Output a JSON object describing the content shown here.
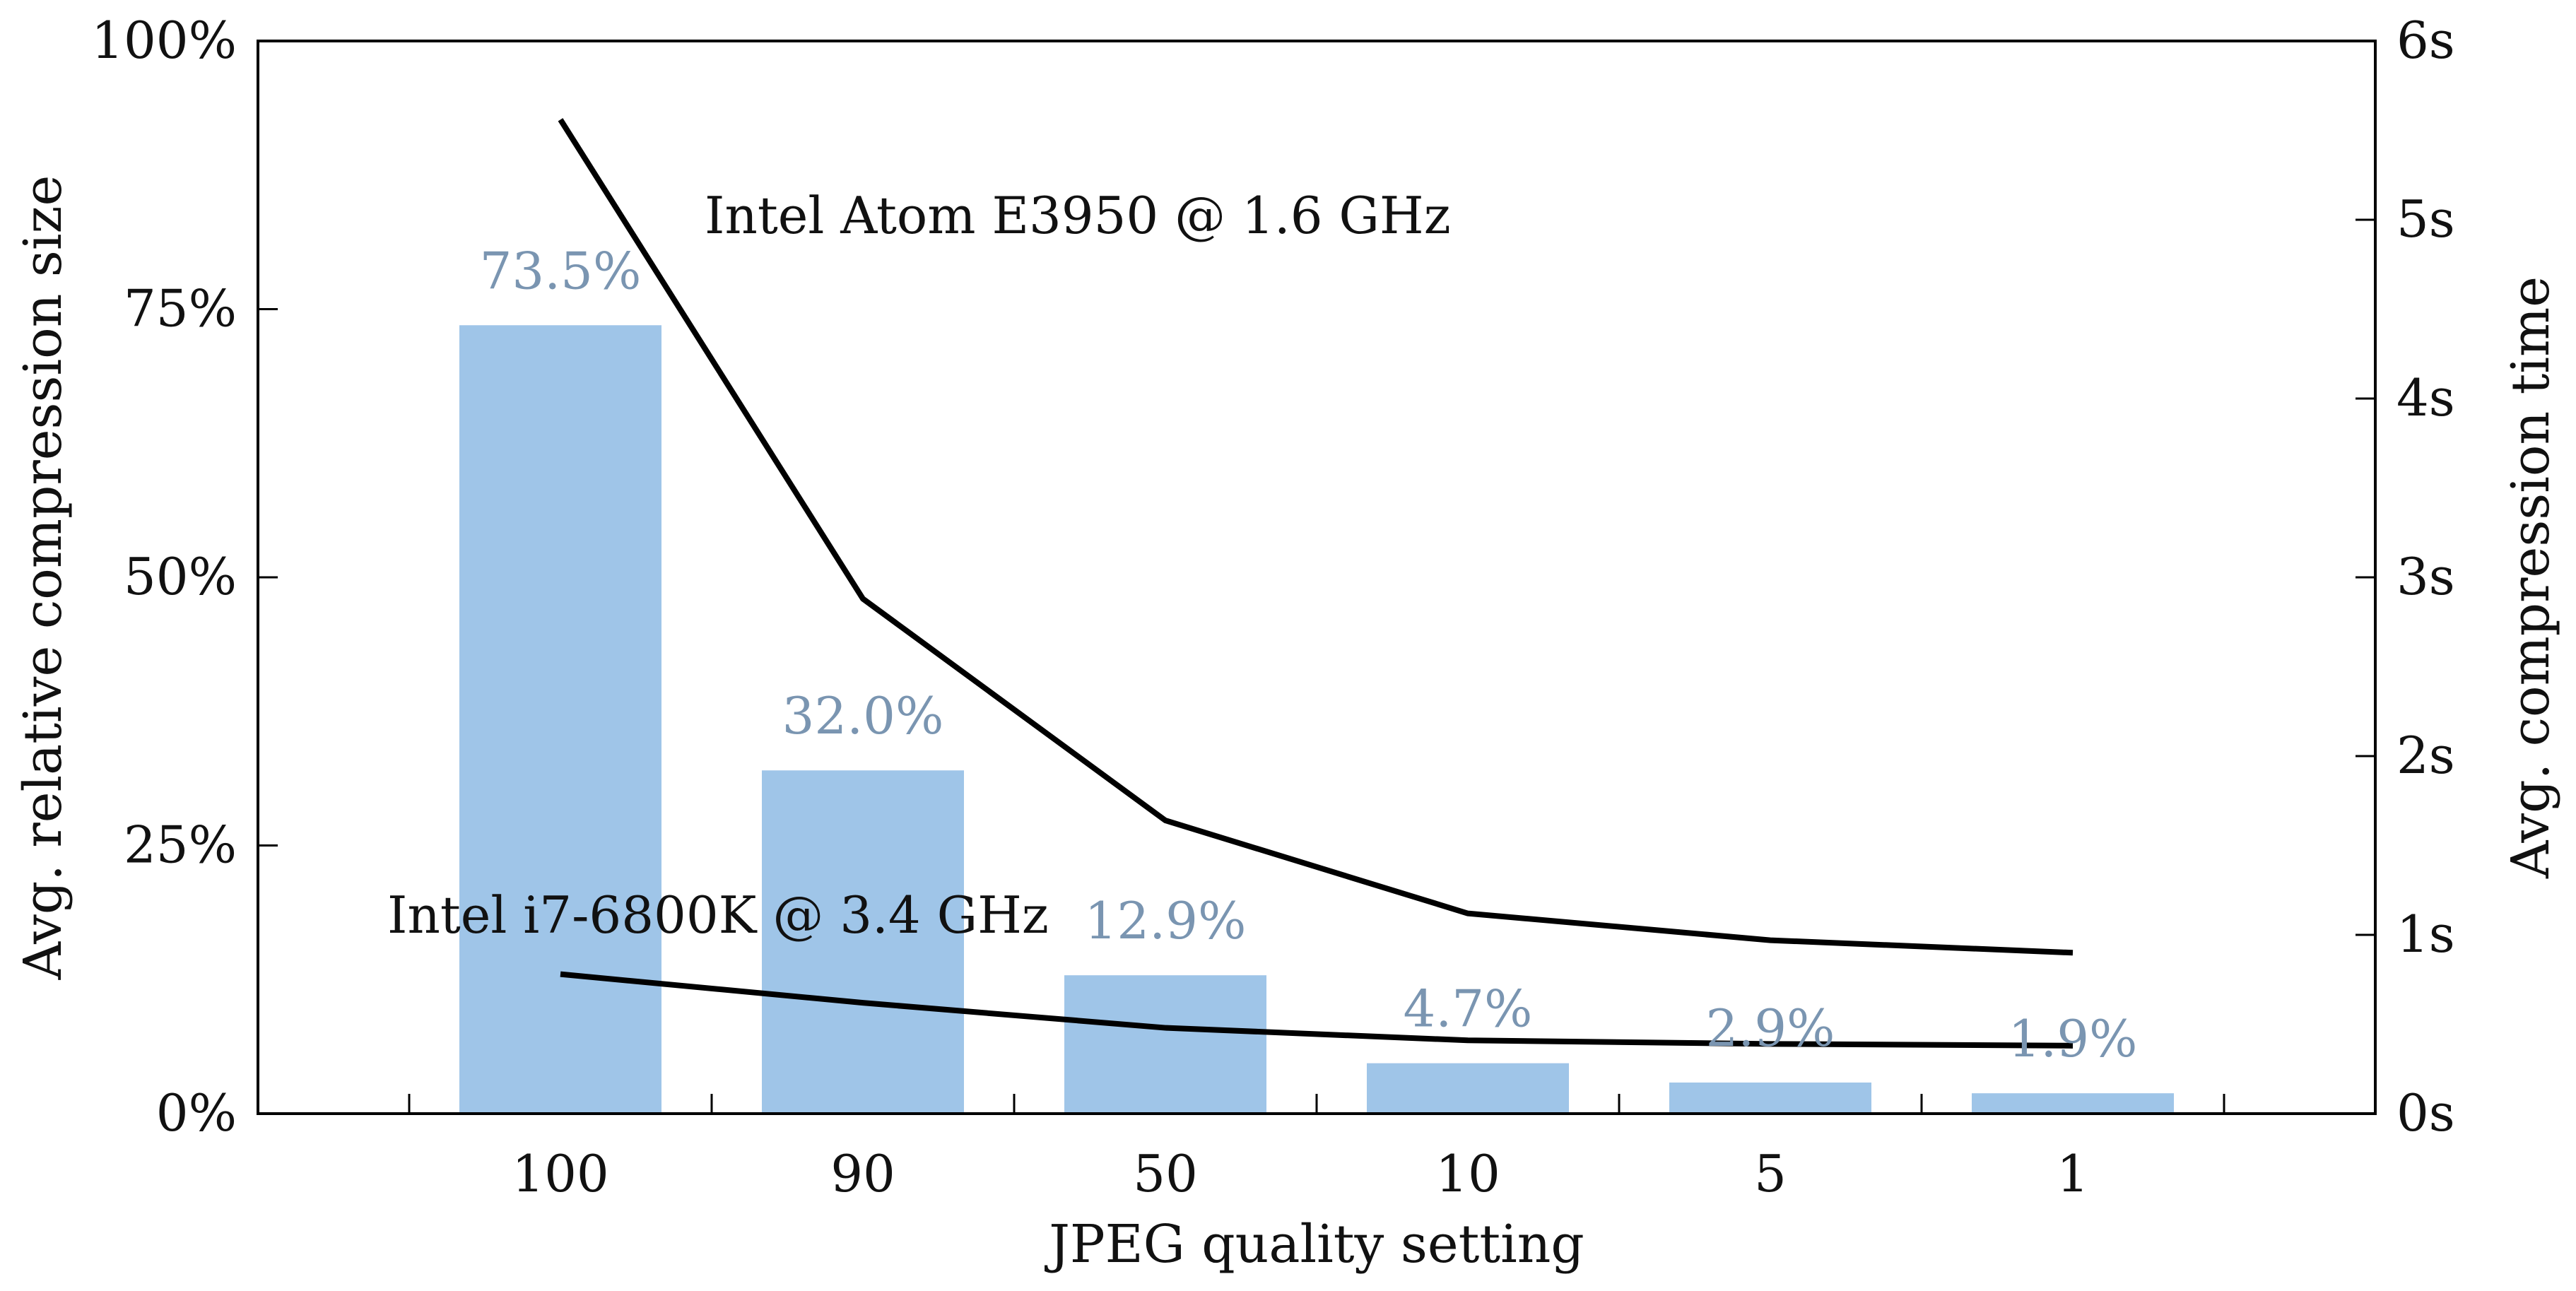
{
  "chart_data": {
    "type": "bar+line",
    "categories": [
      "100",
      "90",
      "50",
      "10",
      "5",
      "1"
    ],
    "xlabel": "JPEG quality setting",
    "ylabel_left": "Avg. relative compression size",
    "ylabel_right": "Avg. compression time",
    "ylim_left": [
      0,
      100
    ],
    "ylim_right": [
      0,
      6
    ],
    "left_ticks": [
      "0%",
      "25%",
      "50%",
      "75%",
      "100%"
    ],
    "left_tick_values": [
      0,
      25,
      50,
      75,
      100
    ],
    "right_ticks": [
      "0s",
      "1s",
      "2s",
      "3s",
      "4s",
      "5s",
      "6s"
    ],
    "right_tick_values": [
      0,
      1,
      2,
      3,
      4,
      5,
      6
    ],
    "bars": {
      "name": "Avg. relative compression size",
      "values": [
        73.5,
        32.0,
        12.9,
        4.7,
        2.9,
        1.9
      ],
      "labels": [
        "73.5%",
        "32.0%",
        "12.9%",
        "4.7%",
        "2.9%",
        "1.9%"
      ],
      "color": "#9fc5e8",
      "label_color": "#7a95b1"
    },
    "lines": [
      {
        "name": "Intel Atom E3950 @ 1.6 GHz",
        "values": [
          5.56,
          2.88,
          1.64,
          1.12,
          0.97,
          0.9
        ],
        "color": "#000000"
      },
      {
        "name": "Intel i7-6800K @ 3.4 GHz",
        "values": [
          0.78,
          0.62,
          0.48,
          0.41,
          0.39,
          0.38
        ],
        "color": "#000000"
      }
    ]
  }
}
